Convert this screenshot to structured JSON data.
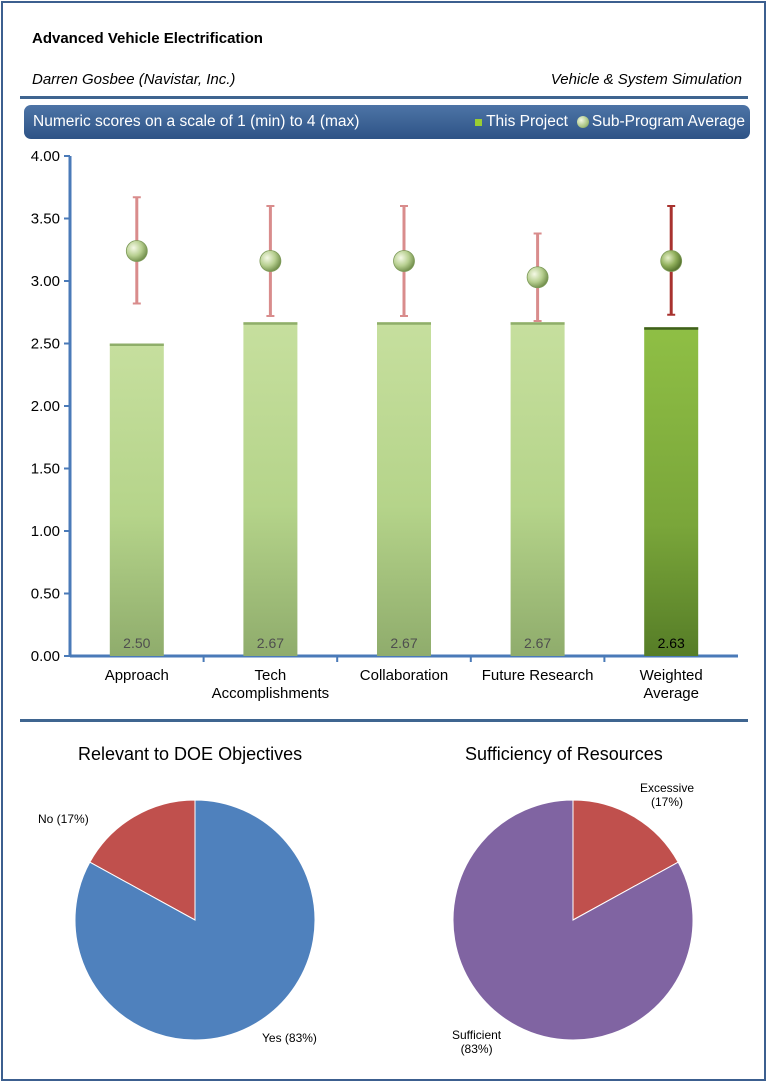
{
  "header": {
    "title": "Advanced Vehicle Electrification",
    "author": "Darren Gosbee (Navistar, Inc.)",
    "category": "Vehicle & System Simulation"
  },
  "banner": {
    "text": "Numeric scores on a scale of 1 (min) to 4 (max)",
    "legend_bar": "This Project",
    "legend_dot": "Sub-Program Average"
  },
  "chart_data": [
    {
      "type": "bar",
      "title": "",
      "xlabel": "",
      "ylabel": "",
      "ylim": [
        0,
        4
      ],
      "yticks": [
        "0.00",
        "0.50",
        "1.00",
        "1.50",
        "2.00",
        "2.50",
        "3.00",
        "3.50",
        "4.00"
      ],
      "grid": false,
      "legend": "top-right",
      "categories": [
        "Approach",
        "Tech Accomplishments",
        "Collaboration",
        "Future Research",
        "Weighted Average"
      ],
      "series": [
        {
          "name": "This Project",
          "values": [
            2.5,
            2.67,
            2.67,
            2.67,
            2.63
          ],
          "labels": [
            "2.50",
            "2.67",
            "2.67",
            "2.67",
            "2.63"
          ]
        },
        {
          "name": "Sub-Program Average",
          "type": "scatter",
          "values": [
            3.24,
            3.16,
            3.16,
            3.03,
            3.16
          ],
          "error_low": [
            2.82,
            2.72,
            2.72,
            2.68,
            2.73
          ],
          "error_high": [
            3.67,
            3.6,
            3.6,
            3.38,
            3.6
          ]
        }
      ],
      "colors": {
        "bar": "#b5d48a",
        "highlight_bar": "#7aa63a",
        "error": "#d98c8c",
        "axis": "#4a7ab8"
      }
    },
    {
      "type": "pie",
      "title": "Relevant to DOE Objectives",
      "labels": [
        "Yes (83%)",
        "No (17%)"
      ],
      "values": [
        83,
        17
      ],
      "colors": [
        "#4f81bd",
        "#c0504d"
      ]
    },
    {
      "type": "pie",
      "title": "Sufficiency of Resources",
      "labels": [
        "Excessive\n(17%)",
        "Sufficient\n(83%)"
      ],
      "values": [
        17,
        83
      ],
      "colors": [
        "#c0504d",
        "#8064a2"
      ]
    }
  ]
}
